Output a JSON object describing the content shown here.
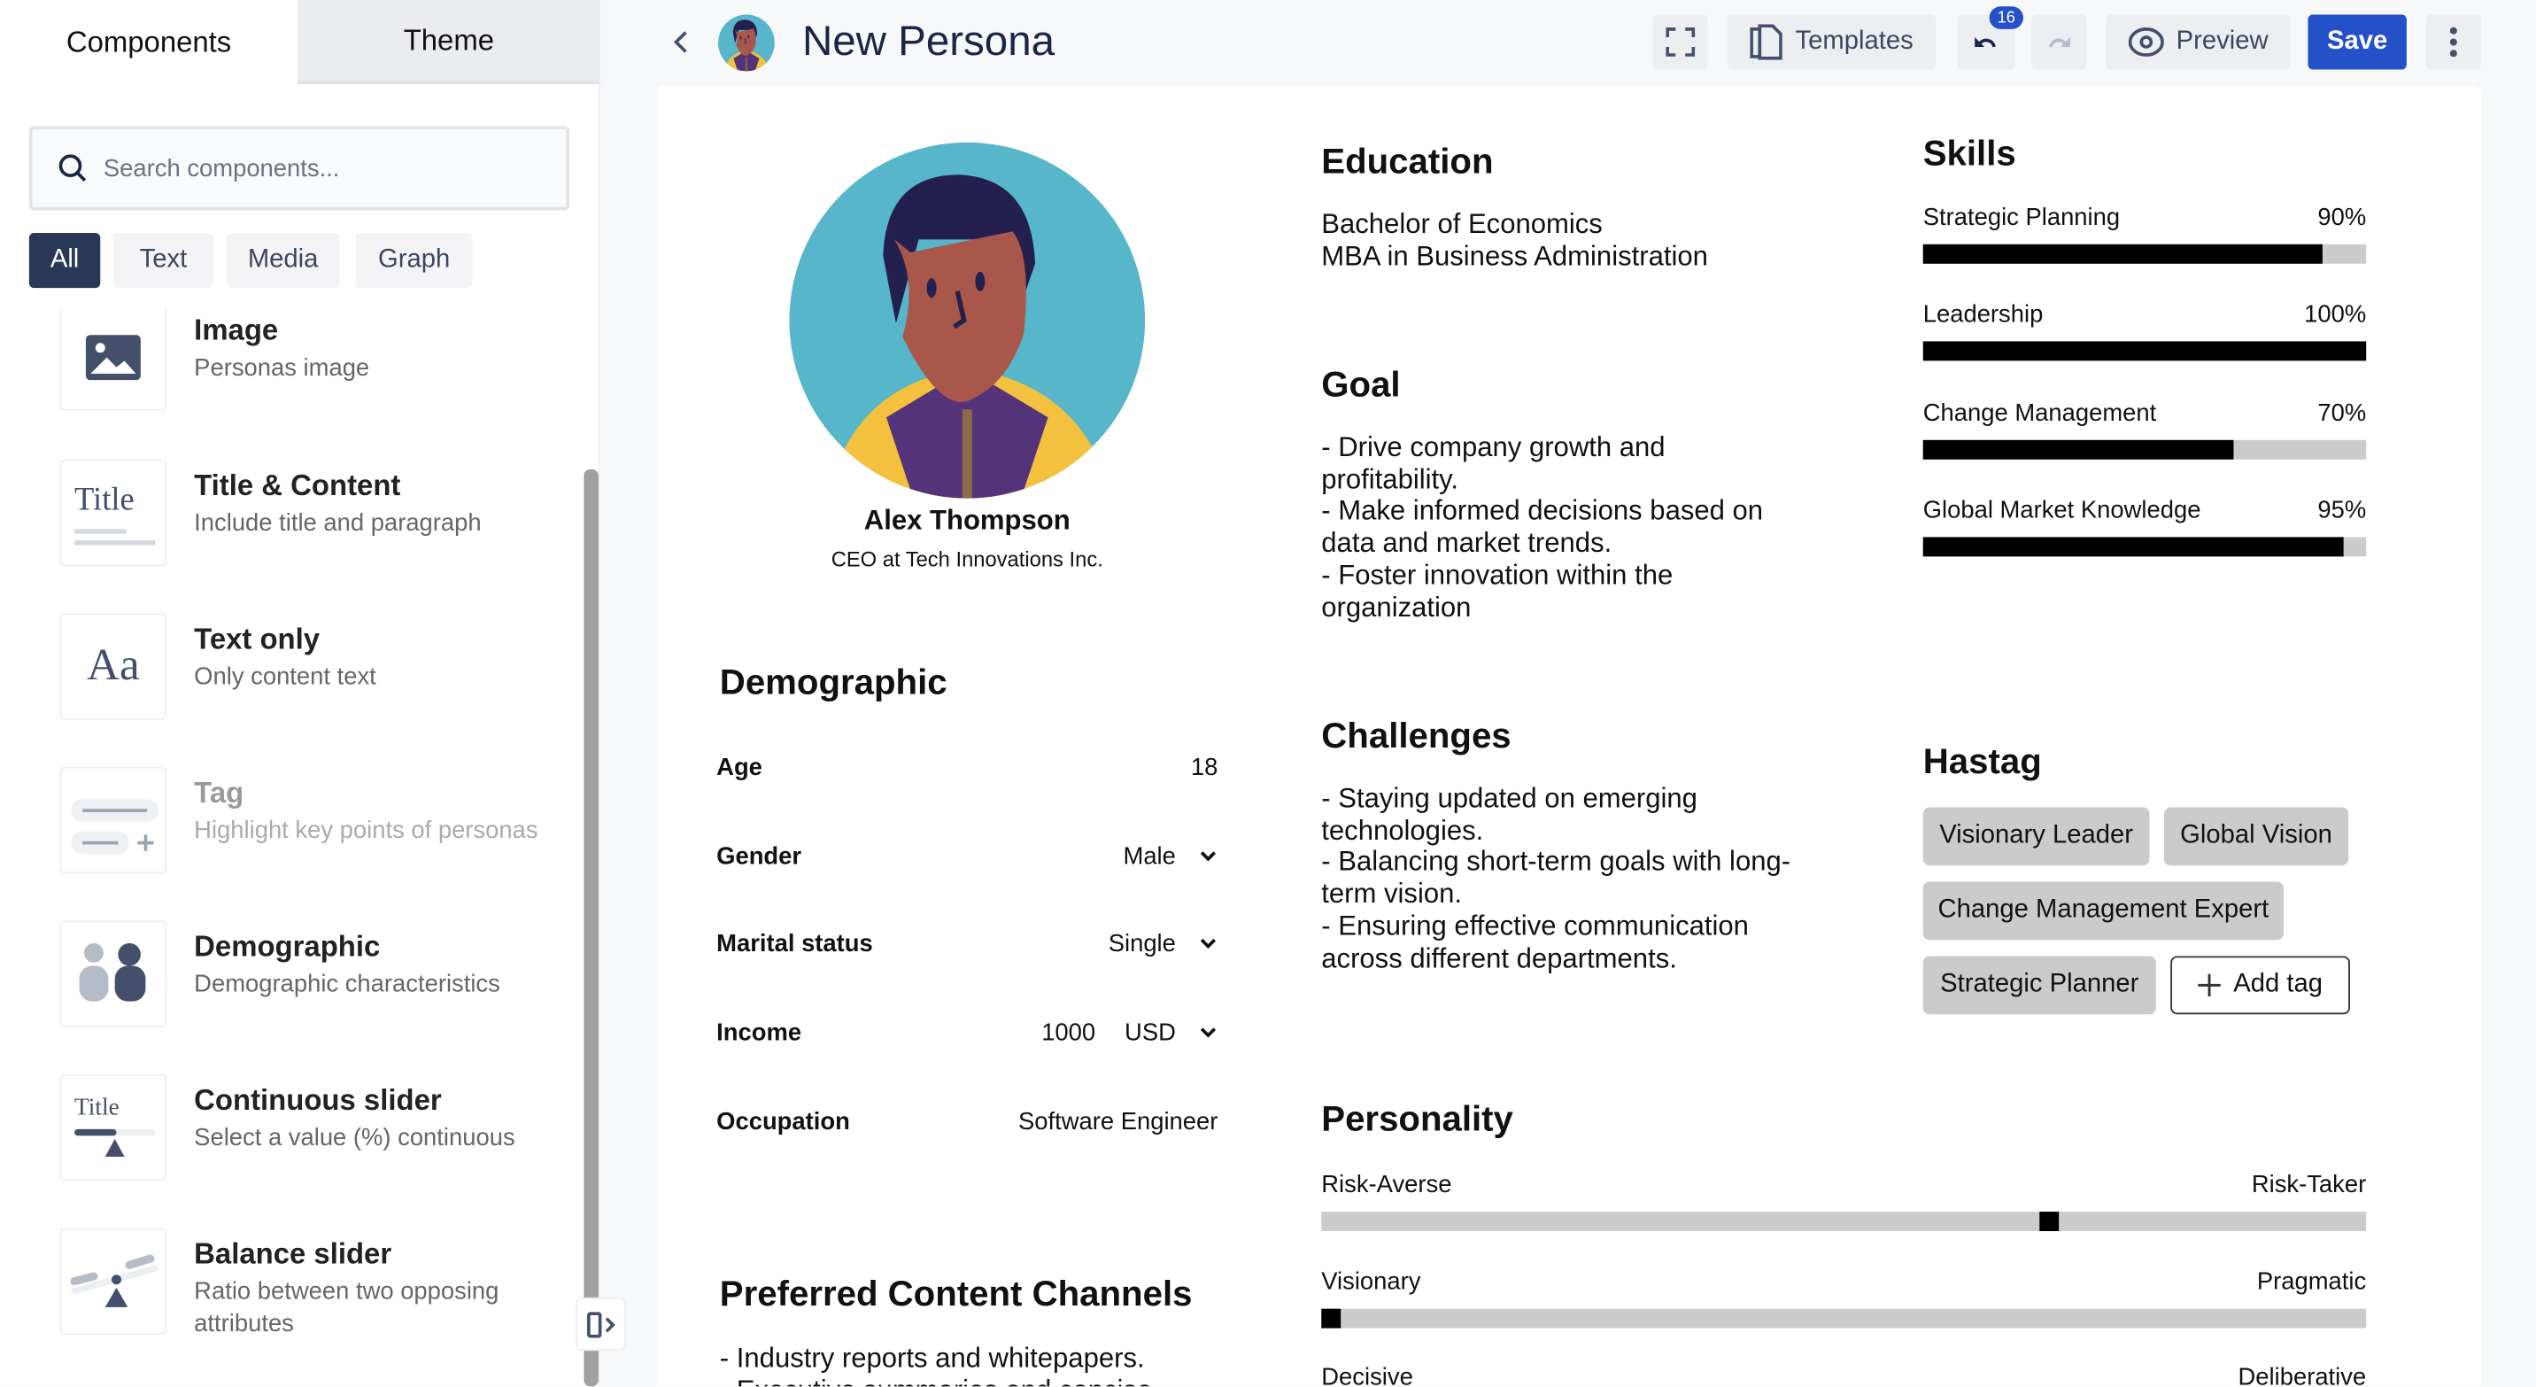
{
  "sidebar": {
    "tabs": [
      "Components",
      "Theme"
    ],
    "search_placeholder": "Search components...",
    "filters": [
      "All",
      "Text",
      "Media",
      "Graph"
    ],
    "items": [
      {
        "title": "Image",
        "desc": "Personas image",
        "icon": "image-icon"
      },
      {
        "title": "Title & Content",
        "desc": "Include title and paragraph",
        "icon": "title-content-icon",
        "icon_text": "Title"
      },
      {
        "title": "Text only",
        "desc": "Only content text",
        "icon": "text-icon",
        "icon_text": "Aa"
      },
      {
        "title": "Tag",
        "desc": "Highlight key points of personas",
        "icon": "tag-icon",
        "disabled": true
      },
      {
        "title": "Demographic",
        "desc": "Demographic characteristics",
        "icon": "people-icon"
      },
      {
        "title": "Continuous slider",
        "desc": "Select a value (%) continuous",
        "icon": "continuous-slider-icon",
        "icon_text": "Title"
      },
      {
        "title": "Balance slider",
        "desc": "Ratio between two opposing attributes",
        "icon": "balance-slider-icon"
      }
    ]
  },
  "header": {
    "title": "New Persona",
    "templates": "Templates",
    "undo_count": "16",
    "preview": "Preview",
    "save": "Save"
  },
  "colors": {
    "accent": "#2450c8",
    "chip_active": "#2a3858",
    "title": "#1a2547"
  },
  "persona": {
    "name": "Alex Thompson",
    "role": "CEO at Tech Innovations Inc.",
    "demographic": {
      "title": "Demographic",
      "rows": [
        {
          "label": "Age",
          "value": "18"
        },
        {
          "label": "Gender",
          "value": "Male",
          "dropdown": true
        },
        {
          "label": "Marital status",
          "value": "Single",
          "dropdown": true
        },
        {
          "label": "Income",
          "value": "1000",
          "unit": "USD",
          "dropdown": true
        },
        {
          "label": "Occupation",
          "value": "Software Engineer"
        }
      ]
    },
    "channels": {
      "title": "Preferred Content Channels",
      "text": "- Industry reports and whitepapers.\n- Executive summaries and concise"
    },
    "education": {
      "title": "Education",
      "text": "Bachelor of Economics\nMBA in Business Administration"
    },
    "goal": {
      "title": "Goal",
      "text": "- Drive company growth and profitability.\n- Make informed decisions based on data and market trends.\n- Foster innovation within the organization"
    },
    "challenges": {
      "title": "Challenges",
      "text": "- Staying updated on emerging technologies.\n- Balancing short-term goals with long-term vision.\n- Ensuring effective communication across different departments."
    },
    "skills": {
      "title": "Skills",
      "items": [
        {
          "name": "Strategic Planning",
          "value": 90,
          "label": "90%"
        },
        {
          "name": "Leadership",
          "value": 100,
          "label": "100%"
        },
        {
          "name": "Change Management",
          "value": 70,
          "label": "70%"
        },
        {
          "name": "Global Market Knowledge",
          "value": 95,
          "label": "95%"
        }
      ]
    },
    "hashtag": {
      "title": "Hastag",
      "tags": [
        "Visionary Leader",
        "Global Vision",
        "Change Management Expert",
        "Strategic Planner"
      ],
      "add": "Add tag"
    },
    "personality": {
      "title": "Personality",
      "sliders": [
        {
          "left": "Risk-Averse",
          "right": "Risk-Taker",
          "value": 70
        },
        {
          "left": "Visionary",
          "right": "Pragmatic",
          "value": 0
        },
        {
          "left": "Decisive",
          "right": "Deliberative"
        }
      ]
    }
  }
}
